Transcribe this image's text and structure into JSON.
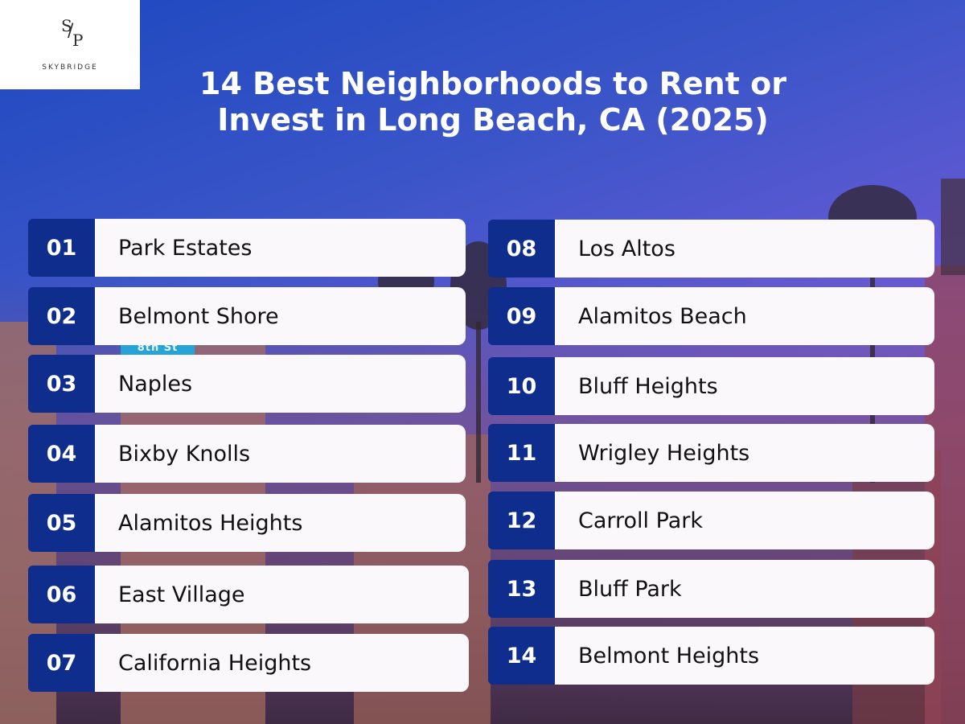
{
  "brand": {
    "mark_s": "S",
    "mark_slash": "/",
    "mark_p": "P",
    "name": "SKYBRIDGE"
  },
  "background": {
    "sign_text": "8th St"
  },
  "title": {
    "line1": "14 Best Neighborhoods to Rent or",
    "line2": "Invest in Long Beach, CA (2025)"
  },
  "neighborhoods": [
    {
      "number": "01",
      "name": "Park Estates"
    },
    {
      "number": "02",
      "name": "Belmont Shore"
    },
    {
      "number": "03",
      "name": "Naples"
    },
    {
      "number": "04",
      "name": "Bixby Knolls"
    },
    {
      "number": "05",
      "name": "Alamitos Heights"
    },
    {
      "number": "06",
      "name": "East Village"
    },
    {
      "number": "07",
      "name": "California Heights"
    },
    {
      "number": "08",
      "name": "Los Altos"
    },
    {
      "number": "09",
      "name": "Alamitos Beach"
    },
    {
      "number": "10",
      "name": "Bluff Heights"
    },
    {
      "number": "11",
      "name": "Wrigley Heights"
    },
    {
      "number": "12",
      "name": "Carroll Park"
    },
    {
      "number": "13",
      "name": "Bluff Park"
    },
    {
      "number": "14",
      "name": "Belmont Heights"
    }
  ],
  "colors": {
    "number_badge": "#0e2d8c",
    "card": "#fbf8fc",
    "gradient_start": "#1e48c0",
    "gradient_end": "#8a5fe0"
  }
}
